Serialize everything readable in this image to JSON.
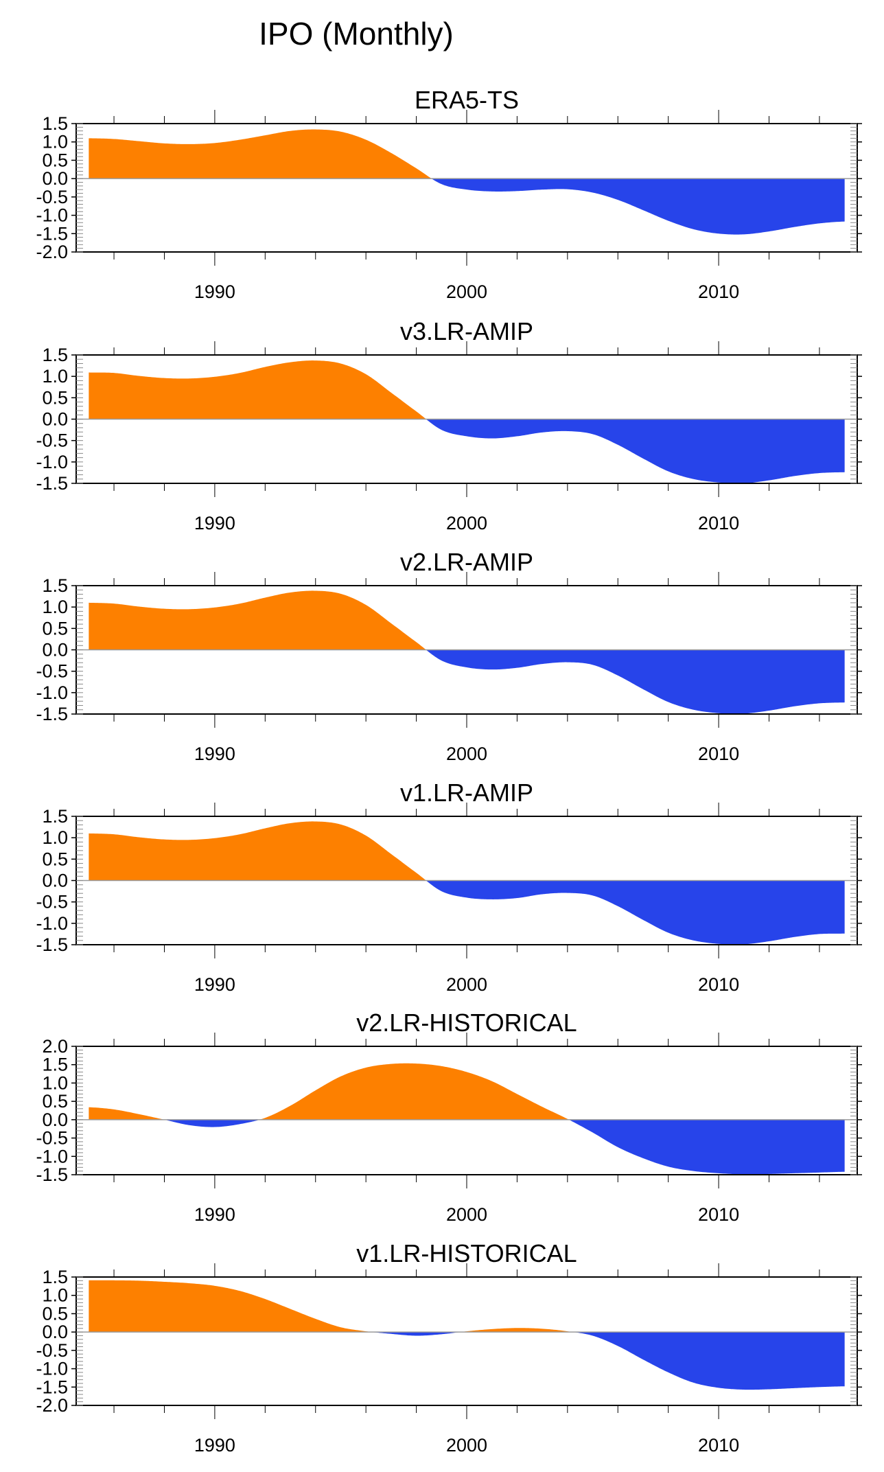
{
  "title": "IPO (Monthly)",
  "chart_data": {
    "type": "area",
    "title": "IPO (Monthly)",
    "colors": {
      "positive": "#fd8000",
      "negative": "#2744ea",
      "zero_line": "#999999",
      "axis": "#000000"
    },
    "x_axis": {
      "range": [
        1984.5,
        2015.5
      ],
      "major_ticks": [
        1990,
        2000,
        2010
      ],
      "major_tick_labels": [
        "1990",
        "2000",
        "2010"
      ],
      "minor_tick_interval": 2
    },
    "panels": [
      {
        "name": "ERA5-TS",
        "ylim": [
          -2.0,
          1.5
        ],
        "y_ticks": [
          "1.5",
          "1.0",
          "0.5",
          "0.0",
          "-0.5",
          "-1.0",
          "-1.5",
          "-2.0"
        ],
        "x": [
          1985,
          1986,
          1987,
          1988,
          1989,
          1990,
          1991,
          1992,
          1993,
          1994,
          1995,
          1996,
          1997,
          1998,
          1999,
          2000,
          2001,
          2002,
          2003,
          2004,
          2005,
          2006,
          2007,
          2008,
          2009,
          2010,
          2011,
          2012,
          2013,
          2014,
          2015
        ],
        "values": [
          1.1,
          1.08,
          1.02,
          0.96,
          0.94,
          0.97,
          1.06,
          1.18,
          1.3,
          1.34,
          1.28,
          1.06,
          0.7,
          0.28,
          -0.15,
          -0.3,
          -0.35,
          -0.34,
          -0.3,
          -0.29,
          -0.38,
          -0.58,
          -0.86,
          -1.15,
          -1.38,
          -1.5,
          -1.52,
          -1.44,
          -1.32,
          -1.22,
          -1.17
        ]
      },
      {
        "name": "v3.LR-AMIP",
        "ylim": [
          -1.5,
          1.5
        ],
        "y_ticks": [
          "1.5",
          "1.0",
          "0.5",
          "0.0",
          "-0.5",
          "-1.0",
          "-1.5"
        ],
        "x": [
          1985,
          1986,
          1987,
          1988,
          1989,
          1990,
          1991,
          1992,
          1993,
          1994,
          1995,
          1996,
          1997,
          1998,
          1999,
          2000,
          2001,
          2002,
          2003,
          2004,
          2005,
          2006,
          2007,
          2008,
          2009,
          2010,
          2011,
          2012,
          2013,
          2014,
          2015
        ],
        "values": [
          1.09,
          1.08,
          1.01,
          0.96,
          0.95,
          0.99,
          1.08,
          1.22,
          1.33,
          1.37,
          1.3,
          1.05,
          0.62,
          0.18,
          -0.25,
          -0.4,
          -0.45,
          -0.4,
          -0.31,
          -0.28,
          -0.35,
          -0.6,
          -0.92,
          -1.22,
          -1.4,
          -1.48,
          -1.5,
          -1.43,
          -1.33,
          -1.26,
          -1.24
        ]
      },
      {
        "name": "v2.LR-AMIP",
        "ylim": [
          -1.5,
          1.5
        ],
        "y_ticks": [
          "1.5",
          "1.0",
          "0.5",
          "0.0",
          "-0.5",
          "-1.0",
          "-1.5"
        ],
        "x": [
          1985,
          1986,
          1987,
          1988,
          1989,
          1990,
          1991,
          1992,
          1993,
          1994,
          1995,
          1996,
          1997,
          1998,
          1999,
          2000,
          2001,
          2002,
          2003,
          2004,
          2005,
          2006,
          2007,
          2008,
          2009,
          2010,
          2011,
          2012,
          2013,
          2014,
          2015
        ],
        "values": [
          1.1,
          1.08,
          1.01,
          0.96,
          0.95,
          0.99,
          1.08,
          1.22,
          1.34,
          1.38,
          1.31,
          1.05,
          0.62,
          0.18,
          -0.25,
          -0.41,
          -0.46,
          -0.42,
          -0.33,
          -0.29,
          -0.35,
          -0.6,
          -0.92,
          -1.22,
          -1.4,
          -1.48,
          -1.49,
          -1.42,
          -1.32,
          -1.25,
          -1.23
        ]
      },
      {
        "name": "v1.LR-AMIP",
        "ylim": [
          -1.5,
          1.5
        ],
        "y_ticks": [
          "1.5",
          "1.0",
          "0.5",
          "0.0",
          "-0.5",
          "-1.0",
          "-1.5"
        ],
        "x": [
          1985,
          1986,
          1987,
          1988,
          1989,
          1990,
          1991,
          1992,
          1993,
          1994,
          1995,
          1996,
          1997,
          1998,
          1999,
          2000,
          2001,
          2002,
          2003,
          2004,
          2005,
          2006,
          2007,
          2008,
          2009,
          2010,
          2011,
          2012,
          2013,
          2014,
          2015
        ],
        "values": [
          1.1,
          1.08,
          1.01,
          0.96,
          0.95,
          0.99,
          1.08,
          1.22,
          1.34,
          1.38,
          1.31,
          1.05,
          0.62,
          0.18,
          -0.25,
          -0.4,
          -0.44,
          -0.41,
          -0.32,
          -0.29,
          -0.35,
          -0.6,
          -0.92,
          -1.22,
          -1.4,
          -1.48,
          -1.49,
          -1.42,
          -1.32,
          -1.25,
          -1.24
        ]
      },
      {
        "name": "v2.LR-HISTORICAL",
        "ylim": [
          -1.5,
          2.0
        ],
        "y_ticks": [
          "2.0",
          "1.5",
          "1.0",
          "0.5",
          "0.0",
          "-0.5",
          "-1.0",
          "-1.5"
        ],
        "x": [
          1985,
          1986,
          1987,
          1988,
          1989,
          1990,
          1991,
          1992,
          1993,
          1994,
          1995,
          1996,
          1997,
          1998,
          1999,
          2000,
          2001,
          2002,
          2003,
          2004,
          2005,
          2006,
          2007,
          2008,
          2009,
          2010,
          2011,
          2012,
          2013,
          2014,
          2015
        ],
        "values": [
          0.34,
          0.28,
          0.15,
          0.0,
          -0.15,
          -0.2,
          -0.12,
          0.05,
          0.38,
          0.8,
          1.18,
          1.42,
          1.52,
          1.53,
          1.46,
          1.3,
          1.05,
          0.7,
          0.35,
          0.02,
          -0.35,
          -0.75,
          -1.05,
          -1.28,
          -1.4,
          -1.46,
          -1.49,
          -1.48,
          -1.46,
          -1.44,
          -1.42
        ]
      },
      {
        "name": "v1.LR-HISTORICAL",
        "ylim": [
          -2.0,
          1.5
        ],
        "y_ticks": [
          "1.5",
          "1.0",
          "0.5",
          "0.0",
          "-0.5",
          "-1.0",
          "-1.5",
          "-2.0"
        ],
        "x": [
          1985,
          1986,
          1987,
          1988,
          1989,
          1990,
          1991,
          1992,
          1993,
          1994,
          1995,
          1996,
          1997,
          1998,
          1999,
          2000,
          2001,
          2002,
          2003,
          2004,
          2005,
          2006,
          2007,
          2008,
          2009,
          2010,
          2011,
          2012,
          2013,
          2014,
          2015
        ],
        "values": [
          1.41,
          1.41,
          1.4,
          1.37,
          1.33,
          1.26,
          1.12,
          0.9,
          0.63,
          0.36,
          0.13,
          0.02,
          -0.05,
          -0.1,
          -0.06,
          0.02,
          0.08,
          0.11,
          0.09,
          0.02,
          -0.1,
          -0.38,
          -0.75,
          -1.1,
          -1.38,
          -1.52,
          -1.57,
          -1.56,
          -1.53,
          -1.5,
          -1.48
        ]
      }
    ]
  }
}
